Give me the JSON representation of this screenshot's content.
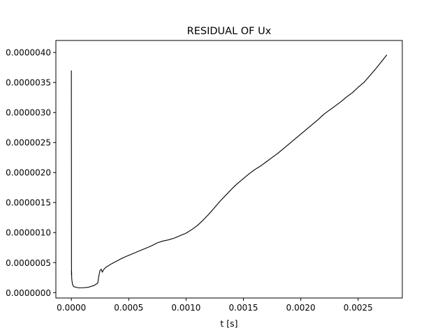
{
  "chart_data": {
    "type": "line",
    "title": "RESIDUAL OF Ux",
    "xlabel": "t [s]",
    "ylabel": "",
    "xlim": [
      -0.000135,
      0.002885
    ],
    "ylim": [
      -9e-08,
      4.2e-06
    ],
    "grid": false,
    "legend": "none",
    "x_ticks": [
      {
        "value": 0.0,
        "label": "0.0000"
      },
      {
        "value": 0.0005,
        "label": "0.0005"
      },
      {
        "value": 0.001,
        "label": "0.0010"
      },
      {
        "value": 0.0015,
        "label": "0.0015"
      },
      {
        "value": 0.002,
        "label": "0.0020"
      },
      {
        "value": 0.0025,
        "label": "0.0025"
      }
    ],
    "y_ticks": [
      {
        "value": 0.0,
        "label": "0.0000000"
      },
      {
        "value": 5e-07,
        "label": "0.0000005"
      },
      {
        "value": 1e-06,
        "label": "0.0000010"
      },
      {
        "value": 1.5e-06,
        "label": "0.0000015"
      },
      {
        "value": 2e-06,
        "label": "0.0000020"
      },
      {
        "value": 2.5e-06,
        "label": "0.0000025"
      },
      {
        "value": 3e-06,
        "label": "0.0000030"
      },
      {
        "value": 3.5e-06,
        "label": "0.0000035"
      },
      {
        "value": 4e-06,
        "label": "0.0000040"
      }
    ],
    "line_color": "#000000",
    "series": [
      {
        "x": [
          0.0,
          0.0,
          1e-06,
          2e-06,
          3e-06,
          5e-06,
          1e-05,
          2e-05,
          4e-05,
          6e-05,
          0.0001,
          0.00015,
          0.0002,
          0.00023,
          0.00024,
          0.00025,
          0.00026,
          0.00027,
          0.00028,
          0.0003,
          0.00035,
          0.0004,
          0.00045,
          0.0005,
          0.00055,
          0.0006,
          0.00065,
          0.0007,
          0.00075,
          0.0008,
          0.00085,
          0.0009,
          0.00095,
          0.001,
          0.00105,
          0.0011,
          0.00115,
          0.0012,
          0.00125,
          0.0013,
          0.00135,
          0.0014,
          0.00145,
          0.0015,
          0.00155,
          0.0016,
          0.00165,
          0.0017,
          0.00175,
          0.0018,
          0.00185,
          0.0019,
          0.00195,
          0.002,
          0.00205,
          0.0021,
          0.00215,
          0.0022,
          0.00225,
          0.0023,
          0.00235,
          0.0024,
          0.00245,
          0.0025,
          0.00255,
          0.0026,
          0.00265,
          0.0027,
          0.00275
        ],
        "y": [
          3.7e-06,
          3.5e-06,
          3e-07,
          3.6e-07,
          2.5e-07,
          2e-07,
          1.4e-07,
          1e-07,
          9e-08,
          8e-08,
          8e-08,
          9e-08,
          1.2e-07,
          1.6e-07,
          2.8e-07,
          3.7e-07,
          3.9e-07,
          3.4e-07,
          3.8e-07,
          4.2e-07,
          4.8e-07,
          5.3e-07,
          5.8e-07,
          6.2e-07,
          6.6e-07,
          7e-07,
          7.4e-07,
          7.8e-07,
          8.3e-07,
          8.6e-07,
          8.8e-07,
          9.1e-07,
          9.5e-07,
          9.9e-07,
          1.05e-06,
          1.12e-06,
          1.21e-06,
          1.31e-06,
          1.42e-06,
          1.53e-06,
          1.63e-06,
          1.73e-06,
          1.82e-06,
          1.9e-06,
          1.98e-06,
          2.05e-06,
          2.11e-06,
          2.18e-06,
          2.25e-06,
          2.32e-06,
          2.4e-06,
          2.48e-06,
          2.56e-06,
          2.64e-06,
          2.72e-06,
          2.8e-06,
          2.88e-06,
          2.97e-06,
          3.04e-06,
          3.11e-06,
          3.18e-06,
          3.26e-06,
          3.33e-06,
          3.42e-06,
          3.5e-06,
          3.61e-06,
          3.72e-06,
          3.84e-06,
          3.96e-06
        ]
      }
    ]
  }
}
